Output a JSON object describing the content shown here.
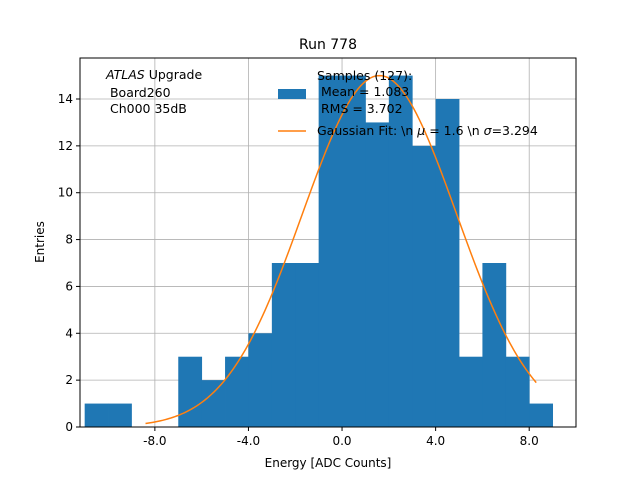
{
  "chart_data": {
    "type": "bar",
    "title": "Run 778",
    "xlabel": "Energy [ADC Counts]",
    "ylabel": "Entries",
    "xlim": [
      -11.2,
      10.0
    ],
    "ylim": [
      0,
      15.75
    ],
    "grid": true,
    "x_ticks": [
      -8,
      -4,
      0,
      4,
      8
    ],
    "x_tick_labels": [
      "-8.0",
      "-4.0",
      "0.0",
      "4.0",
      "8.0"
    ],
    "y_ticks": [
      0,
      2,
      4,
      6,
      8,
      10,
      12,
      14
    ],
    "y_tick_labels": [
      "0",
      "2",
      "4",
      "6",
      "8",
      "10",
      "12",
      "14"
    ],
    "histogram": {
      "name": "Samples (127):\n Mean = 1.083\n RMS = 3.702",
      "color": "#1f77b4",
      "bin_edges": [
        -11,
        -10,
        -9,
        -8,
        -7,
        -6,
        -5,
        -4,
        -3,
        -2,
        -1,
        0,
        1,
        2,
        3,
        4,
        5,
        6,
        7,
        8,
        9
      ],
      "counts": [
        1,
        1,
        0,
        0,
        3,
        2,
        3,
        4,
        7,
        7,
        15,
        15,
        13,
        15,
        12,
        14,
        3,
        7,
        3,
        1
      ]
    },
    "fit": {
      "name": "Gaussian Fit: \\n $\\mu$ = 1.6 \\n $\\sigma$=3.294",
      "color": "#ff7f0e",
      "mu": 1.6,
      "sigma": 3.294,
      "amplitude": 15.0,
      "x_range": [
        -8.4,
        8.3
      ]
    },
    "legend_position": "top-right",
    "annotation": {
      "line1_italic": "ATLAS",
      "line1_rest": " Upgrade",
      "line2": " Board260",
      "line3": " Ch000 35dB"
    },
    "legend": {
      "hist_line1": "Samples (127):",
      "hist_line2": " Mean = 1.083",
      "hist_line3": " RMS = 3.702",
      "fit_prefix": "Gaussian Fit: \\n ",
      "fit_mu_sym": "μ",
      "fit_mid": " = 1.6 \\n ",
      "fit_sigma_sym": "σ",
      "fit_suffix": "=3.294"
    }
  }
}
